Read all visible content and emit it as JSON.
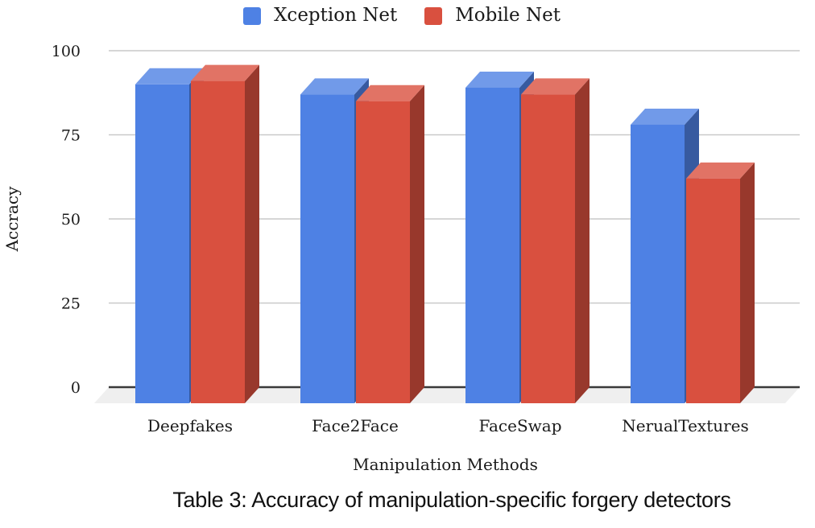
{
  "chart_data": {
    "type": "bar",
    "variant": "3d-grouped-column",
    "categories": [
      "Deepfakes",
      "Face2Face",
      "FaceSwap",
      "NerualTextures"
    ],
    "series": [
      {
        "name": "Xception Net",
        "color": "#4e81e4",
        "values": [
          90,
          87,
          89,
          78
        ]
      },
      {
        "name": "Mobile Net",
        "color": "#d9503f",
        "values": [
          91,
          85,
          87,
          62
        ]
      }
    ],
    "title": "",
    "xlabel": "Manipulation Methods",
    "ylabel": "Accracy",
    "ylim": [
      0,
      100
    ],
    "yticks": [
      0,
      25,
      50,
      75,
      100
    ],
    "grid": true,
    "legend_position": "top-center"
  },
  "caption": "Table 3: Accuracy of manipulation-specific forgery detectors",
  "colors": {
    "gridline": "#c9c9c9",
    "axis_line": "#3a3a3a",
    "floor": "#efefef",
    "text": "#1a1a1a",
    "background": "#ffffff"
  }
}
